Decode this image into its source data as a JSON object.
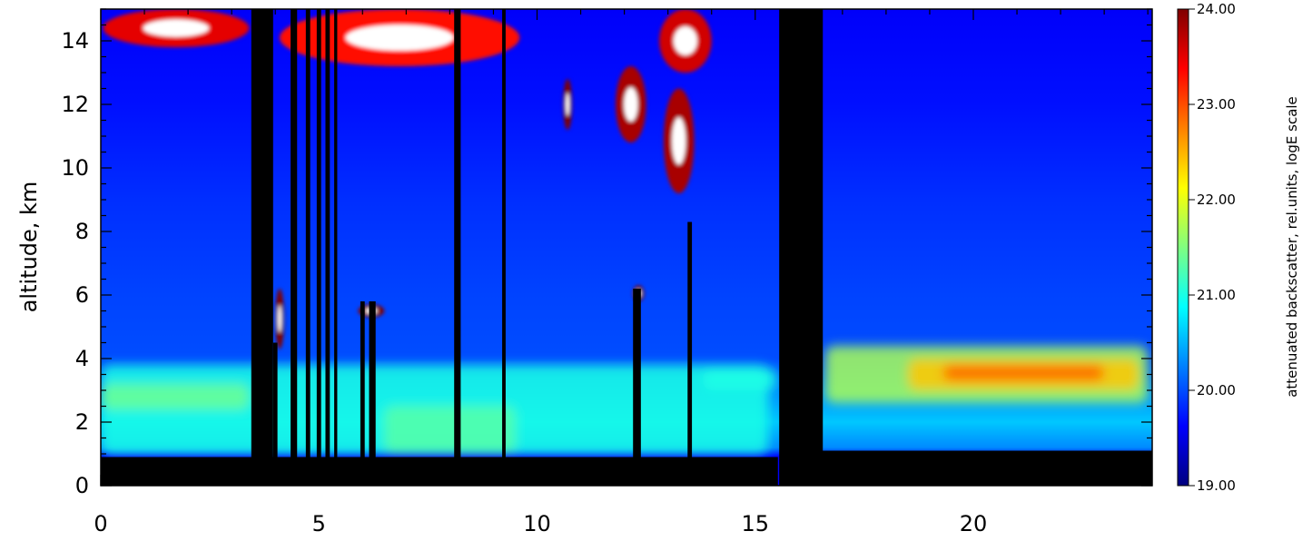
{
  "chart_data": {
    "type": "heatmap",
    "xlim": [
      0,
      24.1
    ],
    "ylim": [
      0,
      15
    ],
    "x_ticks": [
      0,
      5,
      10,
      15,
      20
    ],
    "x_tick_labels": [
      "0",
      "5",
      "10",
      "15",
      "20"
    ],
    "y_ticks": [
      0,
      2,
      4,
      6,
      8,
      10,
      12,
      14
    ],
    "y_tick_labels": [
      "0",
      "2",
      "4",
      "6",
      "8",
      "10",
      "12",
      "14"
    ],
    "ylabel": "altitude, km",
    "colorbar": {
      "label": "attenuated backscatter, rel.units, logE scale",
      "range": [
        19.0,
        24.0
      ],
      "ticks": [
        19.0,
        20.0,
        21.0,
        22.0,
        23.0,
        24.0
      ],
      "tick_labels": [
        "19.00",
        "20.00",
        "21.00",
        "22.00",
        "23.00",
        "24.00"
      ],
      "colors": [
        "#00007f",
        "#0000ff",
        "#0080ff",
        "#00ffff",
        "#80ff80",
        "#ffff00",
        "#ff8000",
        "#ff0000",
        "#7f0000"
      ]
    },
    "background_profile": [
      {
        "alt": 0.9,
        "value": 19.6
      },
      {
        "alt": 1.2,
        "value": 20.3
      },
      {
        "alt": 2.0,
        "value": 20.6
      },
      {
        "alt": 3.0,
        "value": 20.3
      },
      {
        "alt": 4.0,
        "value": 20.0
      },
      {
        "alt": 6.0,
        "value": 19.95
      },
      {
        "alt": 9.0,
        "value": 19.85
      },
      {
        "alt": 12.0,
        "value": 19.7
      },
      {
        "alt": 15.0,
        "value": 19.6
      }
    ],
    "surface": [
      {
        "x0": 0,
        "x1": 15.5,
        "top": 0.9
      },
      {
        "x0": 16.5,
        "x1": 24.1,
        "top": 1.1
      }
    ],
    "no_data": [
      {
        "x0": 3.45,
        "x1": 3.95
      },
      {
        "x0": 15.55,
        "x1": 16.55
      }
    ],
    "dark_columns": [
      {
        "x0": 3.95,
        "x1": 4.05,
        "alt": 4.5
      },
      {
        "x0": 4.35,
        "x1": 4.5,
        "alt": 15
      },
      {
        "x0": 4.7,
        "x1": 4.8,
        "alt": 15
      },
      {
        "x0": 4.95,
        "x1": 5.05,
        "alt": 15
      },
      {
        "x0": 5.15,
        "x1": 5.25,
        "alt": 15
      },
      {
        "x0": 5.35,
        "x1": 5.42,
        "alt": 15
      },
      {
        "x0": 5.95,
        "x1": 6.05,
        "alt": 5.8
      },
      {
        "x0": 6.15,
        "x1": 6.3,
        "alt": 5.8
      },
      {
        "x0": 8.1,
        "x1": 8.25,
        "alt": 15
      },
      {
        "x0": 9.2,
        "x1": 9.28,
        "alt": 15
      },
      {
        "x0": 12.2,
        "x1": 12.38,
        "alt": 6.2
      },
      {
        "x0": 13.45,
        "x1": 13.55,
        "alt": 8.3
      }
    ],
    "aerosol_layers": [
      {
        "x0": 0.0,
        "x1": 15.3,
        "y0": 1.0,
        "y1": 3.8,
        "value": 21.0
      },
      {
        "x0": 0.0,
        "x1": 3.4,
        "y0": 2.4,
        "y1": 3.2,
        "value": 21.4
      },
      {
        "x0": 6.5,
        "x1": 9.5,
        "y0": 1.0,
        "y1": 2.5,
        "value": 21.3
      },
      {
        "x0": 13.8,
        "x1": 15.5,
        "y0": 3.0,
        "y1": 3.7,
        "value": 21.0
      },
      {
        "x0": 16.6,
        "x1": 24.0,
        "y0": 2.6,
        "y1": 4.4,
        "value": 21.7
      },
      {
        "x0": 18.5,
        "x1": 23.8,
        "y0": 3.0,
        "y1": 4.0,
        "value": 22.4
      },
      {
        "x0": 19.3,
        "x1": 23.0,
        "y0": 3.3,
        "y1": 3.8,
        "value": 22.9
      }
    ],
    "clouds": [
      {
        "x0": 0.05,
        "x1": 3.4,
        "y0": 13.8,
        "y1": 15.0,
        "value": 23.5
      },
      {
        "x0": 4.1,
        "x1": 9.6,
        "y0": 13.2,
        "y1": 15.0,
        "value": 23.3
      },
      {
        "x0": 10.6,
        "x1": 10.8,
        "y0": 11.2,
        "y1": 12.8,
        "value": 24.0
      },
      {
        "x0": 11.8,
        "x1": 12.5,
        "y0": 10.8,
        "y1": 13.2,
        "value": 23.8
      },
      {
        "x0": 12.8,
        "x1": 14.0,
        "y0": 13.0,
        "y1": 15.0,
        "value": 23.6
      },
      {
        "x0": 12.9,
        "x1": 13.6,
        "y0": 9.2,
        "y1": 12.5,
        "value": 23.8
      },
      {
        "x0": 12.2,
        "x1": 12.45,
        "y0": 5.8,
        "y1": 6.3,
        "value": 24.0
      },
      {
        "x0": 5.9,
        "x1": 6.5,
        "y0": 5.3,
        "y1": 5.7,
        "value": 24.0
      },
      {
        "x0": 4.0,
        "x1": 4.2,
        "y0": 4.3,
        "y1": 6.2,
        "value": 24.0
      }
    ]
  }
}
